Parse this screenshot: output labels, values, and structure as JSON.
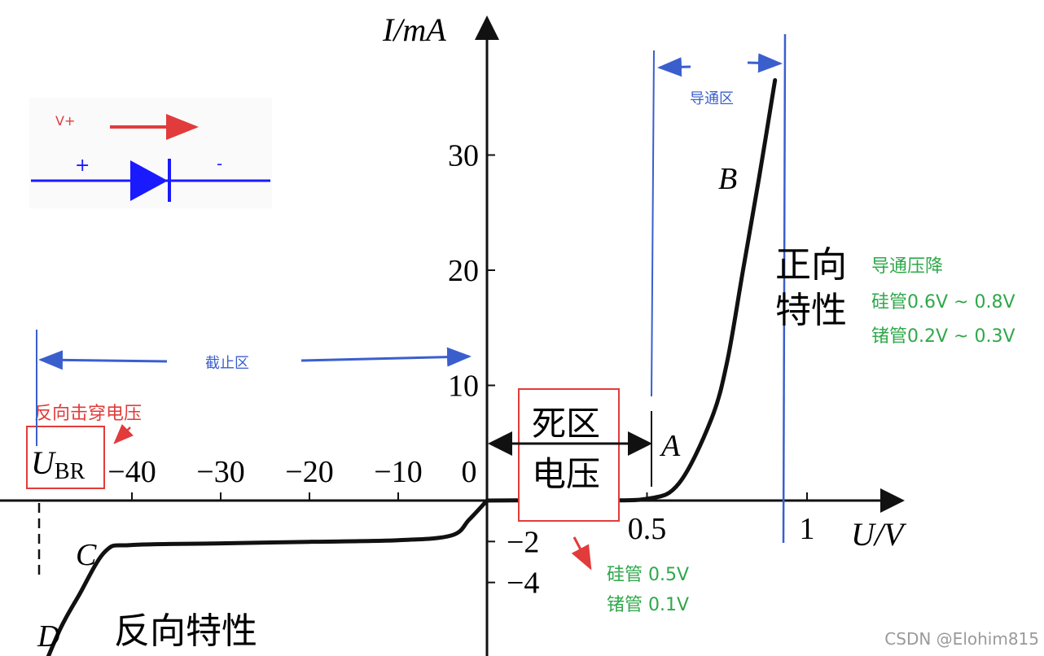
{
  "chart_data": {
    "type": "line",
    "title": "",
    "xlabel": "U/V",
    "ylabel": "I/mA",
    "x_scale": "piecewise",
    "grid": false,
    "x_ticks_negative": [
      "−40",
      "−30",
      "−20",
      "−10",
      "0"
    ],
    "x_ticks_positive": [
      "0.5",
      "1"
    ],
    "y_ticks_positive": [
      "10",
      "20",
      "30"
    ],
    "y_ticks_negative": [
      "−2",
      "−4"
    ],
    "series": [
      {
        "name": "",
        "segment": "forward",
        "points": [
          [
            0,
            0
          ],
          [
            0.3,
            0.05
          ],
          [
            0.5,
            0.15
          ],
          [
            0.6,
            1.5
          ],
          [
            0.7,
            7
          ],
          [
            0.75,
            12
          ],
          [
            0.8,
            20
          ],
          [
            0.85,
            28
          ],
          [
            0.9,
            36.5
          ]
        ]
      },
      {
        "name": "",
        "segment": "reverse",
        "points": [
          [
            0,
            0
          ],
          [
            -2,
            -0.6
          ],
          [
            -4,
            -1.1
          ],
          [
            -10,
            -1.25
          ],
          [
            -20,
            -1.3
          ],
          [
            -30,
            -1.35
          ],
          [
            -40,
            -1.4
          ],
          [
            -43,
            -1.6
          ],
          [
            -46,
            -3
          ],
          [
            -48,
            -4
          ],
          [
            -50,
            -5.3
          ]
        ]
      }
    ],
    "point_labels": [
      "A",
      "B",
      "C",
      "D"
    ]
  },
  "labels": {
    "ubr_main": "U",
    "ubr_sub": "BR",
    "dead_zone_line1": "死区",
    "dead_zone_line2": "电压",
    "forward_char_line1": "正向",
    "forward_char_line2": "特性",
    "reverse_char": "反向特性"
  },
  "annotations": {
    "conduction_zone": "导通区",
    "cutoff_zone": "截止区",
    "reverse_breakdown": "反向击穿电压",
    "forward_drop_title": "导通压降",
    "forward_drop_si": "硅管0.6V ~ 0.8V",
    "forward_drop_ge": "锗管0.2V ~ 0.3V",
    "dead_si": "硅管 0.5V",
    "dead_ge": "锗管 0.1V"
  },
  "inset": {
    "voltage_label": "V+",
    "plus": "+",
    "minus": "-"
  },
  "watermark": "CSDN @Elohim815",
  "colors": {
    "curve": "#111111",
    "annotation_blue": "#3a5fcd",
    "annotation_red": "#e23b3b",
    "annotation_green": "#2fa84a",
    "diode_blue": "#1a1aff"
  }
}
